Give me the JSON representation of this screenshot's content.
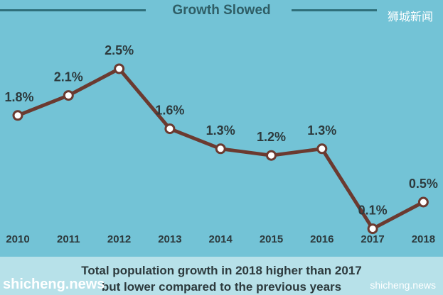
{
  "header": {
    "title": "Growth Slowed",
    "watermark_top_right": "狮城新闻"
  },
  "chart_data": {
    "type": "line",
    "title": "Growth Slowed",
    "categories": [
      "2010",
      "2011",
      "2012",
      "2013",
      "2014",
      "2015",
      "2016",
      "2017",
      "2018"
    ],
    "series": [
      {
        "values": [
          1.8,
          2.1,
          2.5,
          1.6,
          1.3,
          1.2,
          1.3,
          0.1,
          0.5
        ],
        "labels": [
          "1.8%",
          "2.1%",
          "2.5%",
          "1.6%",
          "1.3%",
          "1.2%",
          "1.3%",
          "0.1%",
          "0.5%"
        ]
      }
    ],
    "ylim": [
      0,
      3.0
    ],
    "grid": false,
    "colors": {
      "line": "#6b3a30",
      "marker_fill": "#ffffff",
      "background": "#73c3d6",
      "text": "#2d3a3d"
    }
  },
  "caption": {
    "line1": "Total population growth in 2018 higher than 2017",
    "line2": "but lower compared to the previous years"
  },
  "watermarks": {
    "bottom_left": "shicheng.news",
    "bottom_right": "shicheng.news"
  }
}
